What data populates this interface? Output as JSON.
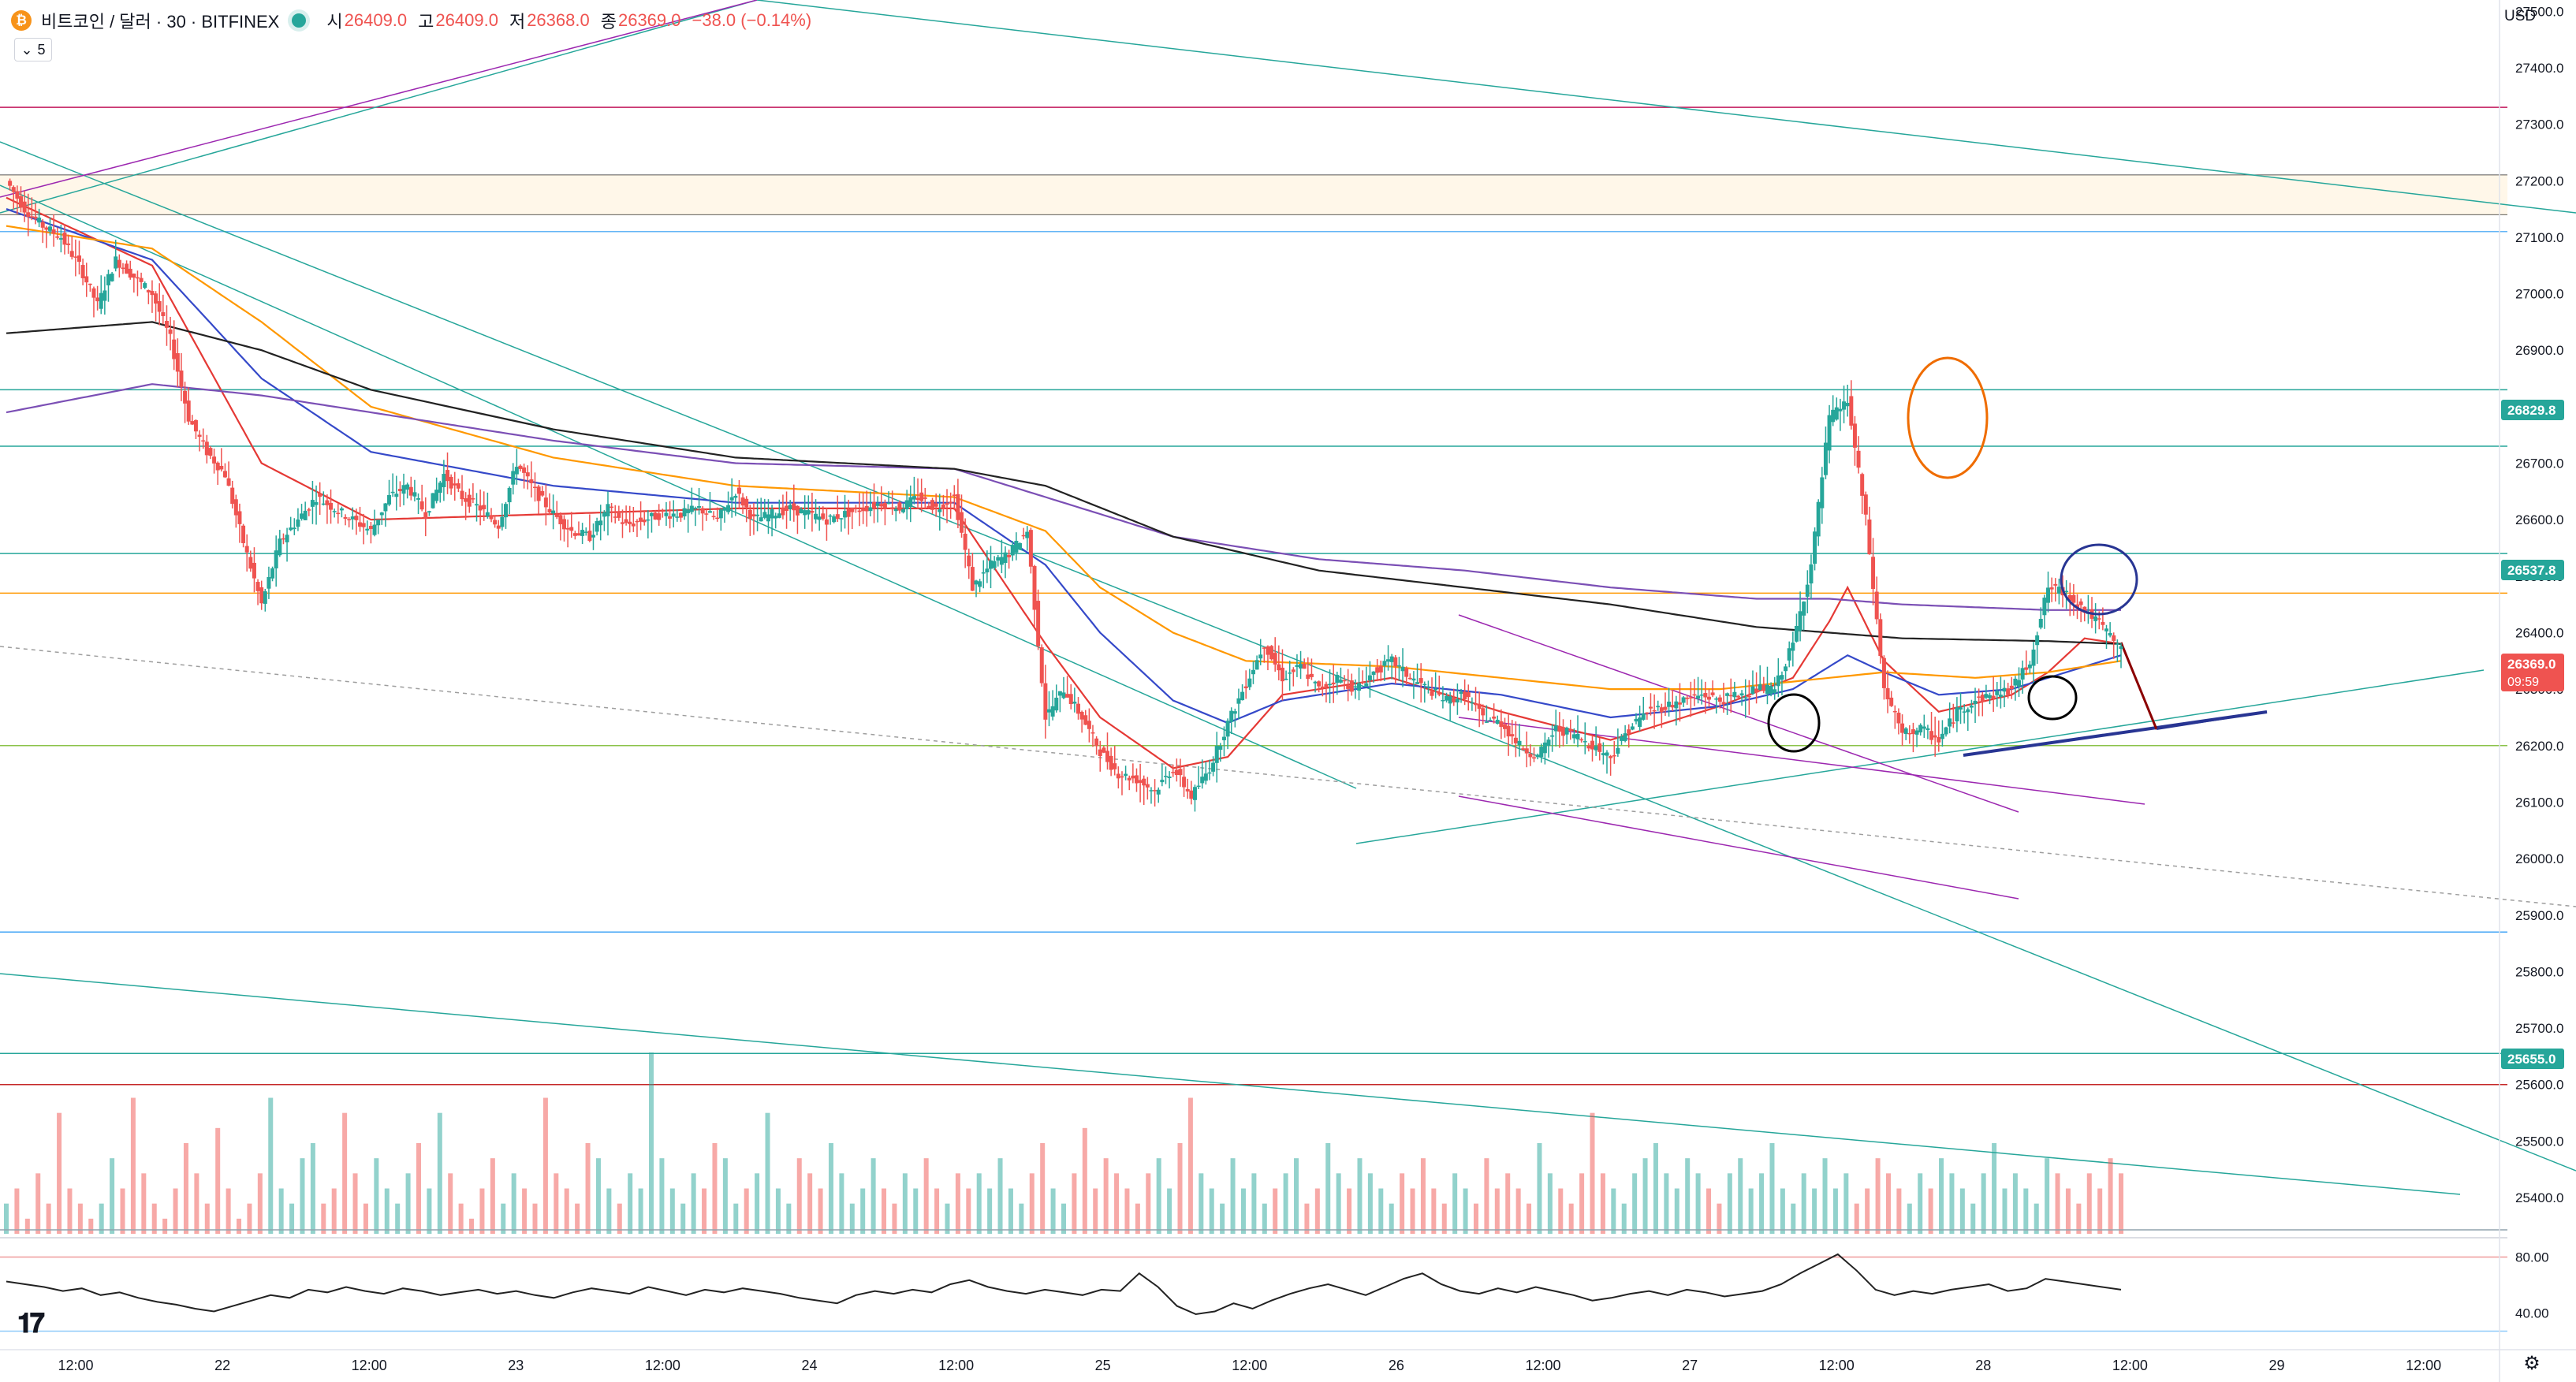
{
  "header": {
    "symbol": "비트코인 / 달러 · 30 · BITFINEX",
    "coin_glyph": "₿",
    "open_label": "시",
    "open_value": "26409.0",
    "high_label": "고",
    "high_value": "26409.0",
    "low_label": "저",
    "low_value": "26368.0",
    "close_label": "종",
    "close_value": "26369.0",
    "change": "−38.0 (−0.14%)",
    "collapse_count": "5"
  },
  "currency": "USD",
  "colors": {
    "up": "#26a69a",
    "down": "#ef5350",
    "ema_red": "#e53935",
    "ema_blue": "#3549c9",
    "ema_orange": "#ff9800",
    "ema_purple": "#7b4fb5",
    "ema_black": "#222222",
    "rsi": "#222222"
  },
  "chart_data": {
    "type": "candlestick",
    "x_tick_labels": [
      "12:00",
      "22",
      "12:00",
      "23",
      "12:00",
      "24",
      "12:00",
      "25",
      "12:00",
      "26",
      "12:00",
      "27",
      "12:00",
      "28",
      "12:00",
      "29",
      "12:00"
    ],
    "price_axis_ticks": [
      27500,
      27400,
      27300,
      27200,
      27100,
      27000,
      26900,
      26800,
      26700,
      26600,
      26500,
      26400,
      26300,
      26200,
      26100,
      26000,
      25900,
      25800,
      25700,
      25600,
      25500,
      25400
    ],
    "ylim": [
      25340,
      27520
    ],
    "price_tags": [
      {
        "value": "26829.8",
        "color": "#26a69a"
      },
      {
        "value": "26537.8",
        "color": "#26a69a"
      },
      {
        "value": "26369.0",
        "color": "#ef5350",
        "sub": "09:59"
      },
      {
        "value": "25655.0",
        "color": "#26a69a"
      }
    ],
    "close_path": [
      [
        0,
        27200
      ],
      [
        5,
        27150
      ],
      [
        10,
        27120
      ],
      [
        15,
        27100
      ],
      [
        20,
        27050
      ],
      [
        25,
        26980
      ],
      [
        30,
        27060
      ],
      [
        35,
        27030
      ],
      [
        40,
        27000
      ],
      [
        45,
        26920
      ],
      [
        50,
        26780
      ],
      [
        55,
        26720
      ],
      [
        60,
        26680
      ],
      [
        65,
        26560
      ],
      [
        70,
        26450
      ],
      [
        75,
        26560
      ],
      [
        80,
        26600
      ],
      [
        85,
        26640
      ],
      [
        90,
        26620
      ],
      [
        95,
        26600
      ],
      [
        100,
        26580
      ],
      [
        105,
        26640
      ],
      [
        110,
        26660
      ],
      [
        115,
        26610
      ],
      [
        120,
        26680
      ],
      [
        125,
        26640
      ],
      [
        130,
        26620
      ],
      [
        135,
        26590
      ],
      [
        140,
        26700
      ],
      [
        145,
        26650
      ],
      [
        150,
        26610
      ],
      [
        155,
        26580
      ],
      [
        160,
        26570
      ],
      [
        165,
        26620
      ],
      [
        170,
        26590
      ],
      [
        175,
        26600
      ],
      [
        180,
        26610
      ],
      [
        185,
        26610
      ],
      [
        190,
        26620
      ],
      [
        195,
        26600
      ],
      [
        200,
        26650
      ],
      [
        205,
        26600
      ],
      [
        210,
        26610
      ],
      [
        215,
        26620
      ],
      [
        220,
        26610
      ],
      [
        225,
        26600
      ],
      [
        230,
        26610
      ],
      [
        235,
        26620
      ],
      [
        240,
        26630
      ],
      [
        245,
        26620
      ],
      [
        250,
        26640
      ],
      [
        255,
        26620
      ],
      [
        260,
        26640
      ],
      [
        265,
        26480
      ],
      [
        270,
        26520
      ],
      [
        275,
        26540
      ],
      [
        280,
        26580
      ],
      [
        285,
        26250
      ],
      [
        290,
        26300
      ],
      [
        295,
        26250
      ],
      [
        300,
        26190
      ],
      [
        305,
        26150
      ],
      [
        310,
        26140
      ],
      [
        315,
        26120
      ],
      [
        320,
        26160
      ],
      [
        325,
        26110
      ],
      [
        330,
        26160
      ],
      [
        335,
        26240
      ],
      [
        340,
        26310
      ],
      [
        345,
        26380
      ],
      [
        350,
        26320
      ],
      [
        355,
        26340
      ],
      [
        360,
        26300
      ],
      [
        365,
        26320
      ],
      [
        370,
        26300
      ],
      [
        375,
        26330
      ],
      [
        380,
        26350
      ],
      [
        385,
        26320
      ],
      [
        390,
        26300
      ],
      [
        395,
        26280
      ],
      [
        400,
        26290
      ],
      [
        405,
        26250
      ],
      [
        410,
        26240
      ],
      [
        415,
        26200
      ],
      [
        420,
        26180
      ],
      [
        425,
        26230
      ],
      [
        430,
        26220
      ],
      [
        435,
        26200
      ],
      [
        440,
        26180
      ],
      [
        445,
        26230
      ],
      [
        450,
        26260
      ],
      [
        455,
        26270
      ],
      [
        460,
        26280
      ],
      [
        465,
        26290
      ],
      [
        470,
        26280
      ],
      [
        475,
        26290
      ],
      [
        480,
        26300
      ],
      [
        485,
        26300
      ],
      [
        490,
        26380
      ],
      [
        495,
        26520
      ],
      [
        500,
        26780
      ],
      [
        505,
        26810
      ],
      [
        510,
        26600
      ],
      [
        515,
        26300
      ],
      [
        520,
        26220
      ],
      [
        525,
        26230
      ],
      [
        530,
        26210
      ],
      [
        535,
        26260
      ],
      [
        540,
        26280
      ],
      [
        545,
        26290
      ],
      [
        550,
        26300
      ],
      [
        555,
        26350
      ],
      [
        560,
        26480
      ],
      [
        565,
        26470
      ],
      [
        570,
        26440
      ],
      [
        575,
        26410
      ],
      [
        580,
        26369
      ]
    ],
    "series": [
      {
        "name": "",
        "color": "#e53935",
        "points": [
          [
            0,
            27170
          ],
          [
            40,
            27050
          ],
          [
            70,
            26700
          ],
          [
            100,
            26600
          ],
          [
            150,
            26610
          ],
          [
            200,
            26620
          ],
          [
            260,
            26620
          ],
          [
            285,
            26380
          ],
          [
            300,
            26250
          ],
          [
            320,
            26160
          ],
          [
            335,
            26180
          ],
          [
            350,
            26290
          ],
          [
            380,
            26320
          ],
          [
            410,
            26260
          ],
          [
            440,
            26210
          ],
          [
            470,
            26270
          ],
          [
            490,
            26320
          ],
          [
            500,
            26420
          ],
          [
            505,
            26480
          ],
          [
            515,
            26350
          ],
          [
            530,
            26260
          ],
          [
            550,
            26290
          ],
          [
            560,
            26330
          ],
          [
            570,
            26390
          ],
          [
            580,
            26380
          ]
        ]
      },
      {
        "name": "",
        "color": "#3549c9",
        "points": [
          [
            0,
            27150
          ],
          [
            40,
            27060
          ],
          [
            70,
            26850
          ],
          [
            100,
            26720
          ],
          [
            150,
            26660
          ],
          [
            200,
            26630
          ],
          [
            260,
            26630
          ],
          [
            285,
            26520
          ],
          [
            300,
            26400
          ],
          [
            320,
            26280
          ],
          [
            335,
            26240
          ],
          [
            350,
            26280
          ],
          [
            380,
            26310
          ],
          [
            410,
            26290
          ],
          [
            440,
            26250
          ],
          [
            470,
            26270
          ],
          [
            490,
            26300
          ],
          [
            505,
            26360
          ],
          [
            515,
            26330
          ],
          [
            530,
            26290
          ],
          [
            550,
            26300
          ],
          [
            570,
            26340
          ],
          [
            580,
            26360
          ]
        ]
      },
      {
        "name": "",
        "color": "#ff9800",
        "points": [
          [
            0,
            27120
          ],
          [
            40,
            27080
          ],
          [
            70,
            26950
          ],
          [
            100,
            26800
          ],
          [
            150,
            26710
          ],
          [
            200,
            26660
          ],
          [
            260,
            26640
          ],
          [
            285,
            26580
          ],
          [
            300,
            26480
          ],
          [
            320,
            26400
          ],
          [
            340,
            26350
          ],
          [
            380,
            26340
          ],
          [
            410,
            26320
          ],
          [
            440,
            26300
          ],
          [
            470,
            26300
          ],
          [
            500,
            26320
          ],
          [
            515,
            26330
          ],
          [
            540,
            26320
          ],
          [
            560,
            26330
          ],
          [
            580,
            26350
          ]
        ]
      },
      {
        "name": "",
        "color": "#7b4fb5",
        "points": [
          [
            0,
            26790
          ],
          [
            40,
            26840
          ],
          [
            70,
            26820
          ],
          [
            100,
            26790
          ],
          [
            150,
            26740
          ],
          [
            200,
            26700
          ],
          [
            260,
            26690
          ],
          [
            285,
            26640
          ],
          [
            320,
            26570
          ],
          [
            360,
            26530
          ],
          [
            400,
            26510
          ],
          [
            440,
            26480
          ],
          [
            480,
            26460
          ],
          [
            500,
            26460
          ],
          [
            520,
            26450
          ],
          [
            560,
            26440
          ],
          [
            580,
            26440
          ]
        ]
      },
      {
        "name": "",
        "color": "#222222",
        "points": [
          [
            0,
            26930
          ],
          [
            40,
            26950
          ],
          [
            70,
            26900
          ],
          [
            100,
            26830
          ],
          [
            150,
            26760
          ],
          [
            200,
            26710
          ],
          [
            260,
            26690
          ],
          [
            285,
            26660
          ],
          [
            320,
            26570
          ],
          [
            360,
            26510
          ],
          [
            400,
            26480
          ],
          [
            440,
            26450
          ],
          [
            480,
            26410
          ],
          [
            500,
            26400
          ],
          [
            520,
            26390
          ],
          [
            560,
            26385
          ],
          [
            580,
            26380
          ]
        ]
      }
    ],
    "volume": [
      2,
      3,
      1,
      4,
      2,
      8,
      3,
      2,
      1,
      2,
      5,
      3,
      9,
      4,
      2,
      1,
      3,
      6,
      4,
      2,
      7,
      3,
      1,
      2,
      4,
      9,
      3,
      2,
      5,
      6,
      2,
      3,
      8,
      4,
      2,
      5,
      3,
      2,
      4,
      6,
      3,
      8,
      4,
      2,
      1,
      3,
      5,
      2,
      4,
      3,
      2,
      9,
      4,
      3,
      2,
      6,
      5,
      3,
      2,
      4,
      3,
      12,
      5,
      3,
      2,
      4,
      3,
      6,
      5,
      2,
      3,
      4,
      8,
      3,
      2,
      5,
      4,
      3,
      6,
      4,
      2,
      3,
      5,
      3,
      2,
      4,
      3,
      5,
      3,
      2,
      4,
      3,
      4,
      3,
      5,
      3,
      2,
      4,
      6,
      3,
      2,
      4,
      7,
      3,
      5,
      4,
      3,
      2,
      4,
      5,
      3,
      6,
      9,
      4,
      3,
      2,
      5,
      3,
      4,
      2,
      3,
      4,
      5,
      2,
      3,
      6,
      4,
      3,
      5,
      4,
      3,
      2,
      4,
      3,
      5,
      3,
      2,
      4,
      3,
      2,
      5,
      3,
      4,
      3,
      2,
      6,
      4,
      3,
      2,
      4,
      8,
      4,
      3,
      2,
      4,
      5,
      6,
      4,
      3,
      5,
      4,
      3,
      2,
      4,
      5,
      3,
      4,
      6,
      3,
      2,
      4,
      3,
      5,
      3,
      4,
      2,
      3,
      5,
      4,
      3,
      2,
      4,
      3,
      5,
      4,
      3,
      2,
      4,
      6,
      3,
      4,
      3,
      2,
      5,
      4,
      3,
      2,
      4,
      3,
      5,
      4
    ],
    "rsi_axis_ticks": [
      80.0,
      40.0
    ],
    "rsi": [
      62,
      60,
      58,
      55,
      57,
      52,
      54,
      50,
      47,
      45,
      42,
      40,
      44,
      48,
      52,
      50,
      56,
      54,
      58,
      55,
      53,
      57,
      55,
      52,
      54,
      56,
      53,
      55,
      52,
      50,
      54,
      57,
      55,
      53,
      58,
      55,
      52,
      56,
      54,
      57,
      55,
      53,
      50,
      48,
      46,
      52,
      55,
      53,
      56,
      54,
      60,
      63,
      58,
      55,
      53,
      56,
      54,
      52,
      56,
      55,
      68,
      58,
      44,
      38,
      40,
      46,
      42,
      48,
      53,
      57,
      60,
      56,
      52,
      58,
      64,
      68,
      60,
      55,
      53,
      57,
      54,
      58,
      55,
      52,
      48,
      50,
      53,
      55,
      52,
      56,
      54,
      51,
      53,
      55,
      60,
      68,
      75,
      82,
      70,
      56,
      52,
      55,
      53,
      56,
      58,
      60,
      55,
      57,
      64,
      62,
      60,
      58,
      56
    ]
  }
}
